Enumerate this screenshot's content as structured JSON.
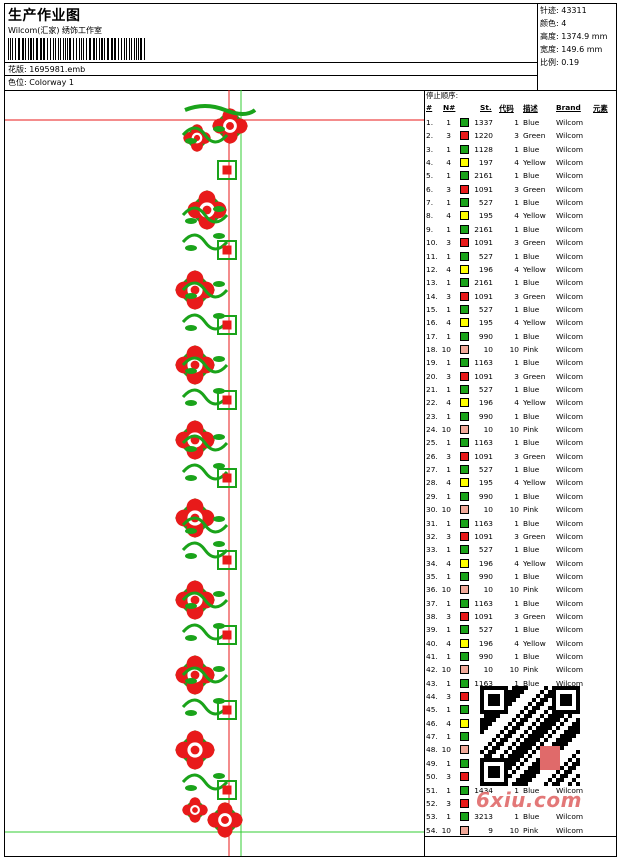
{
  "header": {
    "title": "生产作业图",
    "company": "Wilcom(汇家)  绣饰工作室",
    "design_label": "花版:",
    "design_value": "1695981.emb",
    "colorway_label": "色位:",
    "colorway_value": "Colorway 1"
  },
  "stats": [
    {
      "label": "针迹:",
      "value": "43311"
    },
    {
      "label": "颜色:",
      "value": "4"
    },
    {
      "label": "高度:",
      "value": "1374.9 mm"
    },
    {
      "label": "宽度:",
      "value": "149.6 mm"
    },
    {
      "label": "比例:",
      "value": "0.19"
    }
  ],
  "stop_sequence": {
    "caption": "停止顺序:",
    "columns": {
      "idx": "#",
      "n": "N#",
      "st": "St.",
      "code": "代码",
      "desc": "描述",
      "brand": "Brand",
      "elem": "元素"
    },
    "swatch_colors": {
      "Blue": "#1aa31a",
      "Green": "#e81a1a",
      "Yellow": "#ffff00",
      "Pink": "#f0a898"
    },
    "rows": [
      {
        "idx": "1.",
        "n": "1",
        "st": "1337",
        "code": "1",
        "desc": "Blue",
        "brand": "Wilcom"
      },
      {
        "idx": "2.",
        "n": "3",
        "st": "1220",
        "code": "3",
        "desc": "Green",
        "brand": "Wilcom"
      },
      {
        "idx": "3.",
        "n": "1",
        "st": "1128",
        "code": "1",
        "desc": "Blue",
        "brand": "Wilcom"
      },
      {
        "idx": "4.",
        "n": "4",
        "st": "197",
        "code": "4",
        "desc": "Yellow",
        "brand": "Wilcom"
      },
      {
        "idx": "5.",
        "n": "1",
        "st": "2161",
        "code": "1",
        "desc": "Blue",
        "brand": "Wilcom"
      },
      {
        "idx": "6.",
        "n": "3",
        "st": "1091",
        "code": "3",
        "desc": "Green",
        "brand": "Wilcom"
      },
      {
        "idx": "7.",
        "n": "1",
        "st": "527",
        "code": "1",
        "desc": "Blue",
        "brand": "Wilcom"
      },
      {
        "idx": "8.",
        "n": "4",
        "st": "195",
        "code": "4",
        "desc": "Yellow",
        "brand": "Wilcom"
      },
      {
        "idx": "9.",
        "n": "1",
        "st": "2161",
        "code": "1",
        "desc": "Blue",
        "brand": "Wilcom"
      },
      {
        "idx": "10.",
        "n": "3",
        "st": "1091",
        "code": "3",
        "desc": "Green",
        "brand": "Wilcom"
      },
      {
        "idx": "11.",
        "n": "1",
        "st": "527",
        "code": "1",
        "desc": "Blue",
        "brand": "Wilcom"
      },
      {
        "idx": "12.",
        "n": "4",
        "st": "196",
        "code": "4",
        "desc": "Yellow",
        "brand": "Wilcom"
      },
      {
        "idx": "13.",
        "n": "1",
        "st": "2161",
        "code": "1",
        "desc": "Blue",
        "brand": "Wilcom"
      },
      {
        "idx": "14.",
        "n": "3",
        "st": "1091",
        "code": "3",
        "desc": "Green",
        "brand": "Wilcom"
      },
      {
        "idx": "15.",
        "n": "1",
        "st": "527",
        "code": "1",
        "desc": "Blue",
        "brand": "Wilcom"
      },
      {
        "idx": "16.",
        "n": "4",
        "st": "195",
        "code": "4",
        "desc": "Yellow",
        "brand": "Wilcom"
      },
      {
        "idx": "17.",
        "n": "1",
        "st": "990",
        "code": "1",
        "desc": "Blue",
        "brand": "Wilcom"
      },
      {
        "idx": "18.",
        "n": "10",
        "st": "10",
        "code": "10",
        "desc": "Pink",
        "brand": "Wilcom"
      },
      {
        "idx": "19.",
        "n": "1",
        "st": "1163",
        "code": "1",
        "desc": "Blue",
        "brand": "Wilcom"
      },
      {
        "idx": "20.",
        "n": "3",
        "st": "1091",
        "code": "3",
        "desc": "Green",
        "brand": "Wilcom"
      },
      {
        "idx": "21.",
        "n": "1",
        "st": "527",
        "code": "1",
        "desc": "Blue",
        "brand": "Wilcom"
      },
      {
        "idx": "22.",
        "n": "4",
        "st": "196",
        "code": "4",
        "desc": "Yellow",
        "brand": "Wilcom"
      },
      {
        "idx": "23.",
        "n": "1",
        "st": "990",
        "code": "1",
        "desc": "Blue",
        "brand": "Wilcom"
      },
      {
        "idx": "24.",
        "n": "10",
        "st": "10",
        "code": "10",
        "desc": "Pink",
        "brand": "Wilcom"
      },
      {
        "idx": "25.",
        "n": "1",
        "st": "1163",
        "code": "1",
        "desc": "Blue",
        "brand": "Wilcom"
      },
      {
        "idx": "26.",
        "n": "3",
        "st": "1091",
        "code": "3",
        "desc": "Green",
        "brand": "Wilcom"
      },
      {
        "idx": "27.",
        "n": "1",
        "st": "527",
        "code": "1",
        "desc": "Blue",
        "brand": "Wilcom"
      },
      {
        "idx": "28.",
        "n": "4",
        "st": "195",
        "code": "4",
        "desc": "Yellow",
        "brand": "Wilcom"
      },
      {
        "idx": "29.",
        "n": "1",
        "st": "990",
        "code": "1",
        "desc": "Blue",
        "brand": "Wilcom"
      },
      {
        "idx": "30.",
        "n": "10",
        "st": "10",
        "code": "10",
        "desc": "Pink",
        "brand": "Wilcom"
      },
      {
        "idx": "31.",
        "n": "1",
        "st": "1163",
        "code": "1",
        "desc": "Blue",
        "brand": "Wilcom"
      },
      {
        "idx": "32.",
        "n": "3",
        "st": "1091",
        "code": "3",
        "desc": "Green",
        "brand": "Wilcom"
      },
      {
        "idx": "33.",
        "n": "1",
        "st": "527",
        "code": "1",
        "desc": "Blue",
        "brand": "Wilcom"
      },
      {
        "idx": "34.",
        "n": "4",
        "st": "196",
        "code": "4",
        "desc": "Yellow",
        "brand": "Wilcom"
      },
      {
        "idx": "35.",
        "n": "1",
        "st": "990",
        "code": "1",
        "desc": "Blue",
        "brand": "Wilcom"
      },
      {
        "idx": "36.",
        "n": "10",
        "st": "10",
        "code": "10",
        "desc": "Pink",
        "brand": "Wilcom"
      },
      {
        "idx": "37.",
        "n": "1",
        "st": "1163",
        "code": "1",
        "desc": "Blue",
        "brand": "Wilcom"
      },
      {
        "idx": "38.",
        "n": "3",
        "st": "1091",
        "code": "3",
        "desc": "Green",
        "brand": "Wilcom"
      },
      {
        "idx": "39.",
        "n": "1",
        "st": "527",
        "code": "1",
        "desc": "Blue",
        "brand": "Wilcom"
      },
      {
        "idx": "40.",
        "n": "4",
        "st": "196",
        "code": "4",
        "desc": "Yellow",
        "brand": "Wilcom"
      },
      {
        "idx": "41.",
        "n": "1",
        "st": "990",
        "code": "1",
        "desc": "Blue",
        "brand": "Wilcom"
      },
      {
        "idx": "42.",
        "n": "10",
        "st": "10",
        "code": "10",
        "desc": "Pink",
        "brand": "Wilcom"
      },
      {
        "idx": "43.",
        "n": "1",
        "st": "1163",
        "code": "1",
        "desc": "Blue",
        "brand": "Wilcom"
      },
      {
        "idx": "44.",
        "n": "3",
        "st": "",
        "code": "",
        "desc": "",
        "brand": ""
      },
      {
        "idx": "45.",
        "n": "1",
        "st": "",
        "code": "",
        "desc": "",
        "brand": ""
      },
      {
        "idx": "46.",
        "n": "4",
        "st": "",
        "code": "",
        "desc": "",
        "brand": ""
      },
      {
        "idx": "47.",
        "n": "1",
        "st": "",
        "code": "",
        "desc": "",
        "brand": ""
      },
      {
        "idx": "48.",
        "n": "10",
        "st": "",
        "code": "",
        "desc": "",
        "brand": ""
      },
      {
        "idx": "49.",
        "n": "1",
        "st": "",
        "code": "",
        "desc": "",
        "brand": ""
      },
      {
        "idx": "50.",
        "n": "3",
        "st": "",
        "code": "",
        "desc": "",
        "brand": ""
      },
      {
        "idx": "51.",
        "n": "1",
        "st": "1434",
        "code": "1",
        "desc": "Blue",
        "brand": "Wilcom"
      },
      {
        "idx": "52.",
        "n": "3",
        "st": "",
        "code": "",
        "desc": "",
        "brand": ""
      },
      {
        "idx": "53.",
        "n": "1",
        "st": "3213",
        "code": "1",
        "desc": "Blue",
        "brand": "Wilcom"
      },
      {
        "idx": "54.",
        "n": "10",
        "st": "9",
        "code": "10",
        "desc": "Pink",
        "brand": "Wilcom"
      }
    ]
  },
  "design": {
    "motif_colors": {
      "green": "#1aa31a",
      "red": "#e81a1a"
    },
    "guide_colors": {
      "red": "#e81a1a",
      "green": "#33cc33"
    }
  },
  "watermark": "6xiu.com"
}
